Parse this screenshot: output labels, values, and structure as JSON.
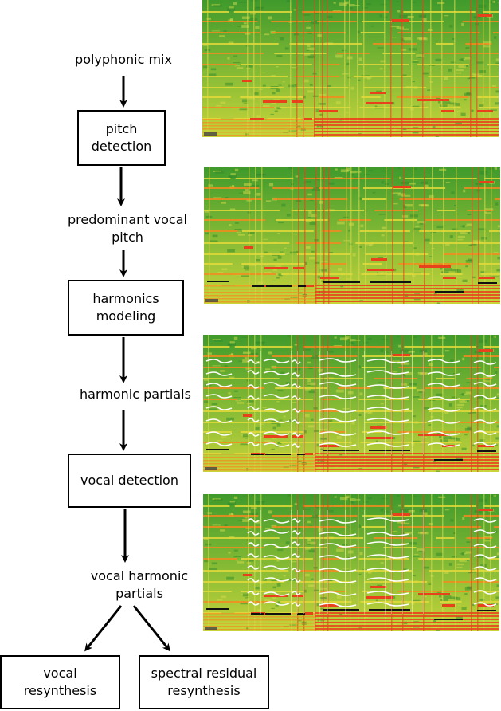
{
  "flow": {
    "input": "polyphonic mix",
    "step1": "pitch\ndetection",
    "out1": "predominant vocal\npitch",
    "step2": "harmonics\nmodeling",
    "out2": "harmonic partials",
    "step3": "vocal detection",
    "out3": "vocal harmonic\npartials",
    "result_a": "vocal\nresynthesis",
    "result_b": "spectral residual\nresynthesis"
  },
  "spectrograms": [
    {
      "overlay": "none"
    },
    {
      "overlay": "pitch"
    },
    {
      "overlay": "partials"
    },
    {
      "overlay": "vocal-partials"
    }
  ],
  "colors": {
    "spec_green": "#3f9a2c",
    "spec_yellow": "#c8d43a",
    "spec_red": "#e8421c",
    "spec_orange": "#f28b1e"
  }
}
